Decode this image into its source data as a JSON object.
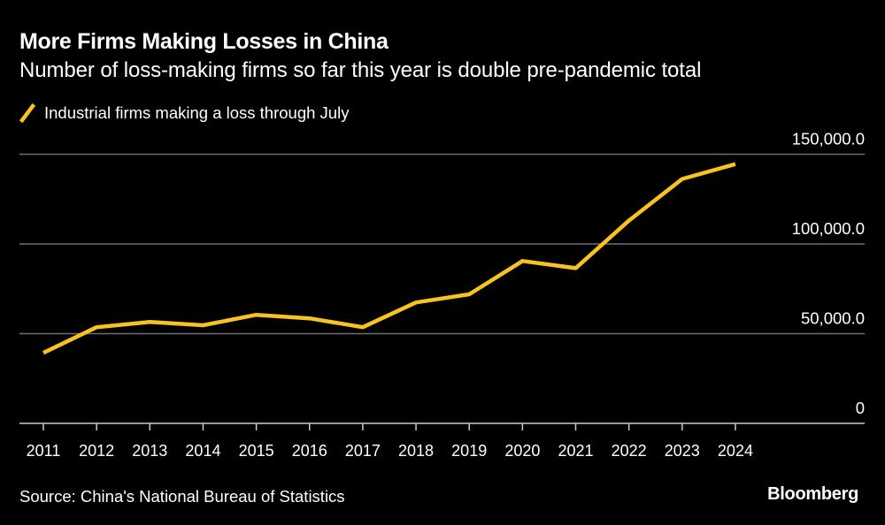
{
  "header": {
    "title": "More Firms Making Losses in China",
    "subtitle": "Number of loss-making firms so far this year is double pre-pandemic total"
  },
  "footer": {
    "source": "Source: China's National Bureau of Statistics",
    "brand": "Bloomberg"
  },
  "colors": {
    "background": "#000000",
    "line": "#F9C31F",
    "gridline": "#6e6e6e",
    "baseline": "#cccccc",
    "text": "#ffffff"
  },
  "chart_data": {
    "type": "line",
    "title": "More Firms Making Losses in China",
    "subtitle": "Number of loss-making firms so far this year is double pre-pandemic total",
    "xlabel": "",
    "ylabel": "",
    "x": [
      "2011",
      "2012",
      "2013",
      "2014",
      "2015",
      "2016",
      "2017",
      "2018",
      "2019",
      "2020",
      "2021",
      "2022",
      "2023",
      "2024"
    ],
    "series": [
      {
        "name": "Industrial firms making a loss through July",
        "values": [
          39300,
          53600,
          56500,
          54700,
          60500,
          58500,
          53600,
          67400,
          71900,
          90500,
          86500,
          113000,
          136200,
          144500
        ]
      }
    ],
    "ylim": [
      0,
      150000
    ],
    "yticks": [
      0,
      50000,
      100000,
      150000
    ],
    "ytick_labels": [
      "0",
      "50,000.0",
      "100,000.0",
      "150,000.0"
    ],
    "y_axis_side": "right",
    "grid": true,
    "legend_position": "top-left"
  }
}
